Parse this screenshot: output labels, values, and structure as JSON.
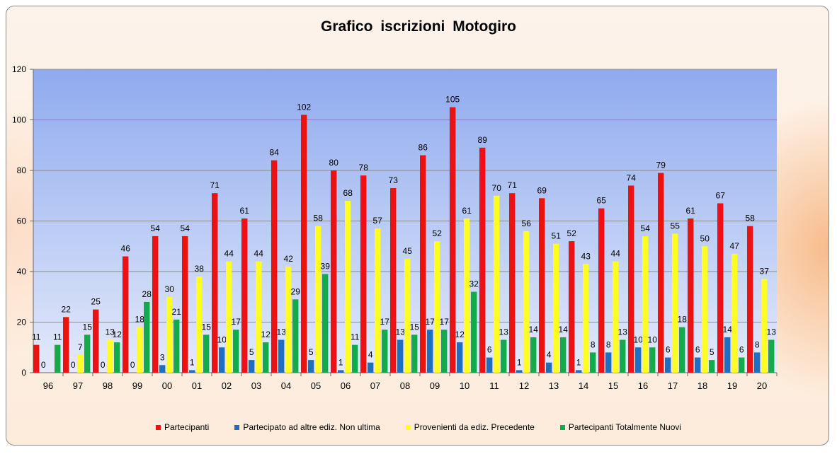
{
  "chart_data": {
    "type": "bar",
    "title": "Grafico  iscrizioni  Motogiro",
    "xlabel": "",
    "ylabel": "",
    "ylim": [
      0,
      120
    ],
    "yticks": [
      0,
      20,
      40,
      60,
      80,
      100,
      120
    ],
    "grid": true,
    "legend_position": "bottom",
    "categories": [
      "96",
      "97",
      "98",
      "99",
      "00",
      "01",
      "02",
      "03",
      "04",
      "05",
      "06",
      "07",
      "08",
      "09",
      "10",
      "11",
      "12",
      "13",
      "14",
      "15",
      "16",
      "17",
      "18",
      "19",
      "20"
    ],
    "series": [
      {
        "name": "Partecipanti",
        "color": "#ee1111",
        "values": [
          11,
          22,
          25,
          46,
          54,
          54,
          71,
          61,
          84,
          102,
          80,
          78,
          73,
          86,
          105,
          89,
          71,
          69,
          52,
          65,
          74,
          79,
          61,
          67,
          58
        ]
      },
      {
        "name": "Partecipato ad altre ediz. Non ultima",
        "color": "#1f6fc0",
        "values": [
          0,
          0,
          0,
          0,
          3,
          1,
          10,
          5,
          13,
          5,
          1,
          4,
          13,
          17,
          12,
          6,
          1,
          4,
          1,
          8,
          10,
          6,
          6,
          14,
          8
        ]
      },
      {
        "name": "Provenienti da ediz. Precedente",
        "color": "#ffff22",
        "values": [
          null,
          7,
          13,
          18,
          30,
          38,
          44,
          44,
          42,
          58,
          68,
          57,
          45,
          52,
          61,
          70,
          56,
          51,
          43,
          44,
          54,
          55,
          50,
          47,
          37
        ]
      },
      {
        "name": "Partecipanti Totalmente Nuovi",
        "color": "#12aa4a",
        "values": [
          11,
          15,
          12,
          28,
          21,
          15,
          17,
          12,
          29,
          39,
          11,
          17,
          15,
          17,
          32,
          13,
          14,
          14,
          8,
          13,
          10,
          18,
          5,
          6,
          13
        ]
      }
    ]
  }
}
